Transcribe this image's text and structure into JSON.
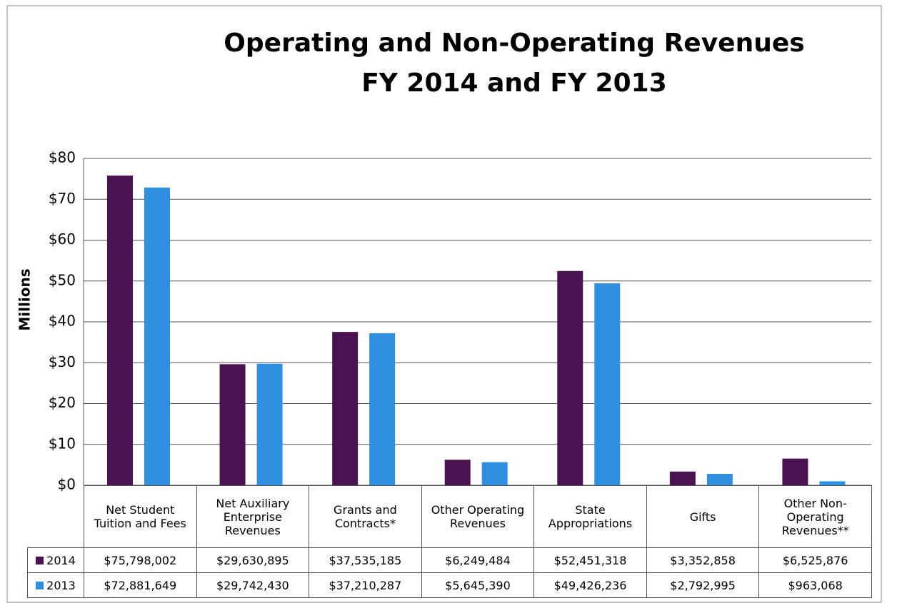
{
  "chart_data": {
    "type": "bar",
    "title": "Operating and Non-Operating Revenues",
    "subtitle": "FY 2014 and FY 2013",
    "y_label": "Millions",
    "categories": [
      "Net Student Tuition and Fees",
      "Net Auxiliary Enterprise Revenues",
      "Grants and Contracts*",
      "Other Operating Revenues",
      "State Appropriations",
      "Gifts",
      "Other Non-Operating Revenues**"
    ],
    "series": [
      {
        "name": "2014",
        "color": "#4a1250",
        "values": [
          75.798002,
          29.630895,
          37.535185,
          6.249484,
          52.451318,
          3.352858,
          6.525876
        ],
        "value_labels": [
          "$75,798,002",
          "$29,630,895",
          "$37,535,185",
          "$6,249,484",
          "$52,451,318",
          "$3,352,858",
          "$6,525,876"
        ]
      },
      {
        "name": "2013",
        "color": "#2f8fe0",
        "values": [
          72.881649,
          29.74243,
          37.210287,
          5.64539,
          49.426236,
          2.792995,
          0.963068
        ],
        "value_labels": [
          "$72,881,649",
          "$29,742,430",
          "$37,210,287",
          "$5,645,390",
          "$49,426,236",
          "$2,792,995",
          "$963,068"
        ]
      }
    ],
    "ylim": [
      0,
      80
    ],
    "yticks": [
      {
        "value": 0,
        "label": "$0"
      },
      {
        "value": 10,
        "label": "$10"
      },
      {
        "value": 20,
        "label": "$20"
      },
      {
        "value": 30,
        "label": "$30"
      },
      {
        "value": 40,
        "label": "$40"
      },
      {
        "value": 50,
        "label": "$50"
      },
      {
        "value": 60,
        "label": "$60"
      },
      {
        "value": 70,
        "label": "$70"
      },
      {
        "value": 80,
        "label": "$80"
      }
    ],
    "grid": true
  }
}
